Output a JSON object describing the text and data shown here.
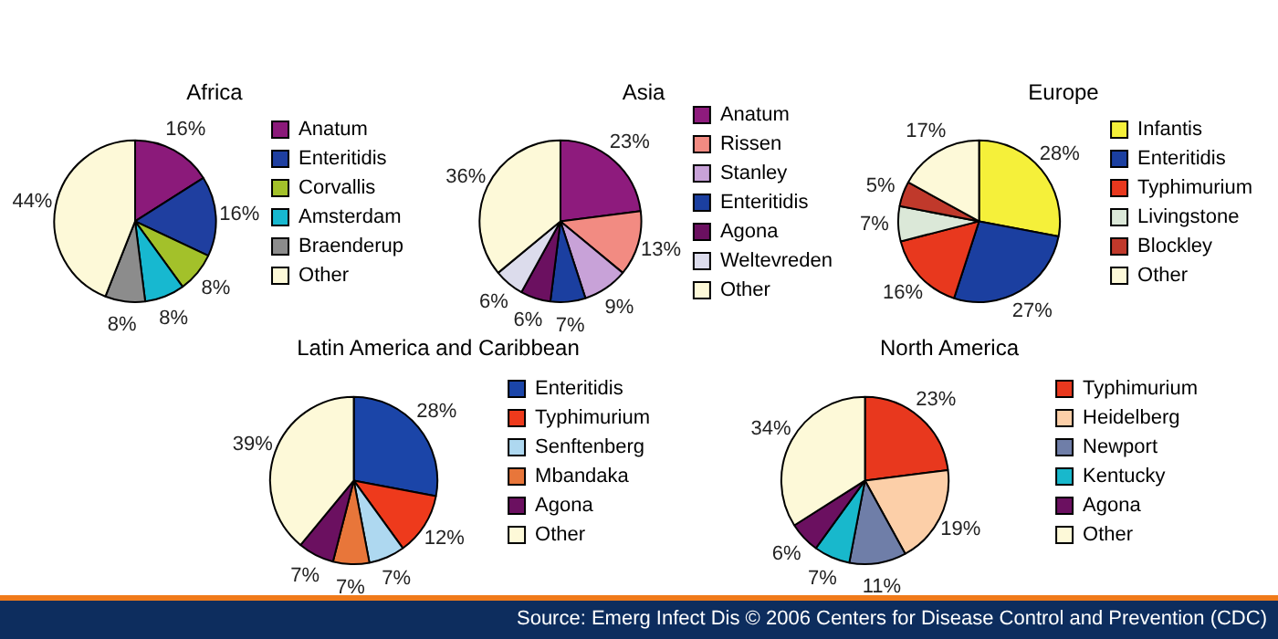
{
  "chart_data": [
    {
      "type": "pie",
      "title": "Africa",
      "legend": "right",
      "categories": [
        "Anatum",
        "Enteritidis",
        "Corvallis",
        "Amsterdam",
        "Braenderup",
        "Other"
      ],
      "values": [
        16,
        16,
        8,
        8,
        8,
        44
      ],
      "colors": [
        "#8b1a7a",
        "#1f3fa0",
        "#a3c12a",
        "#17b8d0",
        "#8c8c8c",
        "#fdf9d8"
      ],
      "value_labels": [
        "16%",
        "16%",
        "8%",
        "8%",
        "8%",
        "44%"
      ]
    },
    {
      "type": "pie",
      "title": "Asia",
      "legend": "right",
      "categories": [
        "Anatum",
        "Rissen",
        "Stanley",
        "Enteritidis",
        "Agona",
        "Weltevreden",
        "Other"
      ],
      "values": [
        23,
        13,
        9,
        7,
        6,
        6,
        36
      ],
      "colors": [
        "#8e1b7d",
        "#f28b82",
        "#c8a2d8",
        "#1b3fa0",
        "#6b1060",
        "#dcdcec",
        "#fdf9d8"
      ],
      "value_labels": [
        "23%",
        "13%",
        "9%",
        "7%",
        "6%",
        "6%",
        "36%"
      ]
    },
    {
      "type": "pie",
      "title": "Europe",
      "legend": "right",
      "categories": [
        "Infantis",
        "Enteritidis",
        "Typhimurium",
        "Livingstone",
        "Blockley",
        "Other"
      ],
      "values": [
        28,
        27,
        16,
        7,
        5,
        17
      ],
      "colors": [
        "#f5f03a",
        "#1b3fa0",
        "#e8381e",
        "#dbe8d8",
        "#c0392b",
        "#fdf9d8"
      ],
      "value_labels": [
        "28%",
        "27%",
        "16%",
        "7%",
        "5%",
        "17%"
      ]
    },
    {
      "type": "pie",
      "title": "Latin America and Caribbean",
      "legend": "right",
      "categories": [
        "Enteritidis",
        "Typhimurium",
        "Senftenberg",
        "Mbandaka",
        "Agona",
        "Other"
      ],
      "values": [
        28,
        12,
        7,
        7,
        7,
        39
      ],
      "colors": [
        "#1b45a8",
        "#ee3a1c",
        "#aed8f0",
        "#e8763a",
        "#6b1060",
        "#fdf9d8"
      ],
      "value_labels": [
        "28%",
        "12%",
        "7%",
        "7%",
        "7%",
        "39%"
      ]
    },
    {
      "type": "pie",
      "title": "North America",
      "legend": "right",
      "categories": [
        "Typhimurium",
        "Heidelberg",
        "Newport",
        "Kentucky",
        "Agona",
        "Other"
      ],
      "values": [
        23,
        19,
        11,
        7,
        6,
        34
      ],
      "colors": [
        "#e8381e",
        "#fccfa8",
        "#6f7ea8",
        "#18b8cc",
        "#6b1060",
        "#fdf9d8"
      ],
      "value_labels": [
        "23%",
        "19%",
        "11%",
        "7%",
        "6%",
        "34%"
      ],
      "annotations": [
        "Source: Emerg Infect Dis © 2006 Centers for Disease Control and Prevention (CDC)"
      ]
    }
  ]
}
